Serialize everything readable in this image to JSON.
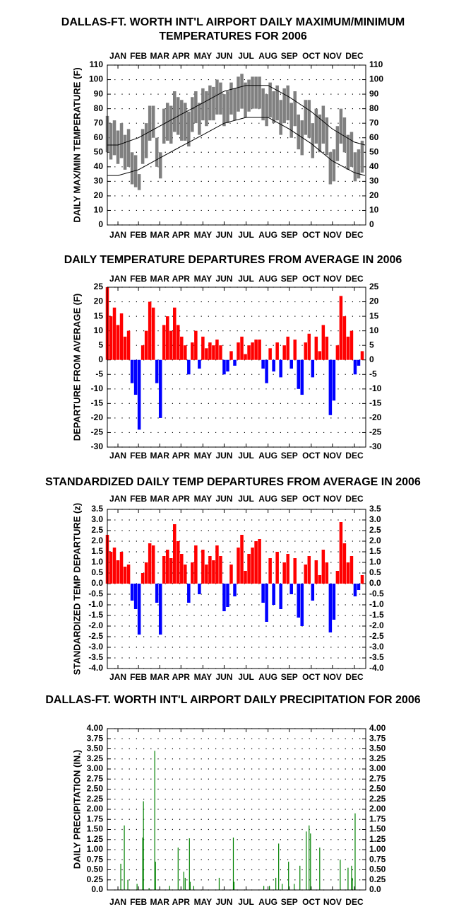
{
  "chart_data": [
    {
      "type": "range",
      "title": [
        "DALLAS-FT. WORTH INT'L AIRPORT DAILY MAXIMUM/MINIMUM",
        "TEMPERATURES FOR 2006"
      ],
      "ylabel": "DAILY MAX/MIN TEMPERATURE (F)",
      "xlim": [
        1,
        366
      ],
      "xticks": [
        {
          "value": 16,
          "label": "JAN"
        },
        {
          "value": 45,
          "label": "FEB"
        },
        {
          "value": 75,
          "label": "MAR"
        },
        {
          "value": 105,
          "label": "APR"
        },
        {
          "value": 136,
          "label": "MAY"
        },
        {
          "value": 166,
          "label": "JUN"
        },
        {
          "value": 197,
          "label": "JUL"
        },
        {
          "value": 228,
          "label": "AUG"
        },
        {
          "value": 258,
          "label": "SEP"
        },
        {
          "value": 289,
          "label": "OCT"
        },
        {
          "value": 319,
          "label": "NOV"
        },
        {
          "value": 350,
          "label": "DEC"
        }
      ],
      "xtick_sides": [
        "top",
        "bottom"
      ],
      "ylim": [
        0,
        110
      ],
      "yticks": [
        0,
        10,
        20,
        30,
        40,
        50,
        60,
        70,
        80,
        90,
        100,
        110
      ],
      "grid": "dotted",
      "x": [
        1,
        6,
        11,
        16,
        21,
        26,
        31,
        36,
        41,
        46,
        51,
        56,
        61,
        66,
        71,
        76,
        81,
        86,
        91,
        96,
        101,
        106,
        111,
        116,
        121,
        126,
        131,
        136,
        141,
        146,
        151,
        156,
        161,
        166,
        171,
        176,
        181,
        186,
        191,
        196,
        201,
        206,
        211,
        216,
        221,
        226,
        231,
        236,
        241,
        246,
        251,
        256,
        261,
        266,
        271,
        276,
        281,
        286,
        291,
        296,
        301,
        306,
        311,
        316,
        321,
        326,
        331,
        336,
        341,
        346,
        351,
        356,
        361
      ],
      "high": [
        75,
        70,
        72,
        65,
        70,
        62,
        66,
        50,
        48,
        35,
        66,
        70,
        82,
        82,
        60,
        50,
        80,
        84,
        82,
        92,
        88,
        86,
        84,
        78,
        88,
        92,
        84,
        94,
        92,
        96,
        95,
        100,
        98,
        90,
        92,
        98,
        94,
        102,
        104,
        98,
        100,
        102,
        102,
        102,
        94,
        90,
        98,
        92,
        96,
        86,
        94,
        96,
        84,
        92,
        76,
        72,
        86,
        86,
        70,
        80,
        76,
        82,
        74,
        50,
        52,
        68,
        80,
        74,
        62,
        64,
        50,
        52,
        58
      ],
      "low": [
        50,
        45,
        48,
        42,
        46,
        38,
        40,
        28,
        26,
        24,
        42,
        46,
        58,
        60,
        40,
        32,
        56,
        58,
        56,
        64,
        62,
        58,
        58,
        54,
        64,
        70,
        62,
        72,
        68,
        72,
        72,
        76,
        76,
        68,
        70,
        76,
        72,
        78,
        80,
        74,
        78,
        80,
        80,
        80,
        72,
        68,
        74,
        70,
        72,
        62,
        70,
        72,
        60,
        68,
        52,
        48,
        62,
        60,
        46,
        56,
        50,
        56,
        48,
        28,
        30,
        44,
        56,
        50,
        38,
        40,
        30,
        32,
        36
      ],
      "color": "#808080",
      "normals": {
        "x": [
          1,
          16,
          45,
          75,
          105,
          136,
          166,
          197,
          228,
          258,
          289,
          319,
          350,
          365
        ],
        "high": [
          55,
          55,
          60,
          68,
          76,
          84,
          92,
          96,
          96,
          88,
          78,
          66,
          57,
          55
        ],
        "low": [
          34,
          34,
          38,
          46,
          54,
          62,
          70,
          74,
          74,
          66,
          56,
          44,
          36,
          34
        ],
        "color": "#000000"
      }
    },
    {
      "type": "bar",
      "title": [
        "DAILY TEMPERATURE DEPARTURES FROM AVERAGE IN 2006"
      ],
      "ylabel": "DEPARTURE FROM AVERAGE (F)",
      "xlim": [
        1,
        366
      ],
      "xticks": [
        {
          "value": 16,
          "label": "JAN"
        },
        {
          "value": 45,
          "label": "FEB"
        },
        {
          "value": 75,
          "label": "MAR"
        },
        {
          "value": 105,
          "label": "APR"
        },
        {
          "value": 136,
          "label": "MAY"
        },
        {
          "value": 166,
          "label": "JUN"
        },
        {
          "value": 197,
          "label": "JUL"
        },
        {
          "value": 228,
          "label": "AUG"
        },
        {
          "value": 258,
          "label": "SEP"
        },
        {
          "value": 289,
          "label": "OCT"
        },
        {
          "value": 319,
          "label": "NOV"
        },
        {
          "value": 350,
          "label": "DEC"
        }
      ],
      "xtick_sides": [
        "top",
        "bottom"
      ],
      "ylim": [
        -30,
        25
      ],
      "yticks": [
        -30,
        -25,
        -20,
        -15,
        -10,
        -5,
        0,
        5,
        10,
        15,
        20,
        25
      ],
      "grid": "dotted",
      "bar_days": 5,
      "x": [
        1,
        6,
        11,
        16,
        21,
        26,
        31,
        36,
        41,
        46,
        51,
        56,
        61,
        66,
        71,
        76,
        81,
        86,
        91,
        96,
        101,
        106,
        111,
        116,
        121,
        126,
        131,
        136,
        141,
        146,
        151,
        156,
        161,
        166,
        171,
        176,
        181,
        186,
        191,
        196,
        201,
        206,
        211,
        216,
        221,
        226,
        231,
        236,
        241,
        246,
        251,
        256,
        261,
        266,
        271,
        276,
        281,
        286,
        291,
        296,
        301,
        306,
        311,
        316,
        321,
        326,
        331,
        336,
        341,
        346,
        351,
        356,
        361
      ],
      "values": [
        25,
        15,
        18,
        12,
        16,
        8,
        10,
        -8,
        -12,
        -24,
        5,
        10,
        20,
        18,
        -8,
        -20,
        12,
        15,
        10,
        18,
        12,
        8,
        5,
        -5,
        6,
        10,
        -3,
        8,
        4,
        6,
        5,
        7,
        5,
        -5,
        -4,
        3,
        -2,
        6,
        8,
        2,
        5,
        6,
        7,
        7,
        -3,
        -8,
        4,
        -4,
        6,
        -6,
        5,
        8,
        -3,
        7,
        -10,
        -12,
        6,
        9,
        -6,
        8,
        3,
        12,
        8,
        -19,
        -14,
        5,
        22,
        15,
        8,
        10,
        -5,
        -2,
        3
      ],
      "colors": {
        "positive": "#ff0000",
        "negative": "#0000ff"
      }
    },
    {
      "type": "bar",
      "title": [
        "STANDARDIZED DAILY TEMP DEPARTURES FROM AVERAGE IN 2006"
      ],
      "ylabel": "STANDARDIZED TEMP DEPARTURE (z)",
      "xlim": [
        1,
        366
      ],
      "xticks": [
        {
          "value": 16,
          "label": "JAN"
        },
        {
          "value": 45,
          "label": "FEB"
        },
        {
          "value": 75,
          "label": "MAR"
        },
        {
          "value": 105,
          "label": "APR"
        },
        {
          "value": 136,
          "label": "MAY"
        },
        {
          "value": 166,
          "label": "JUN"
        },
        {
          "value": 197,
          "label": "JUL"
        },
        {
          "value": 228,
          "label": "AUG"
        },
        {
          "value": 258,
          "label": "SEP"
        },
        {
          "value": 289,
          "label": "OCT"
        },
        {
          "value": 319,
          "label": "NOV"
        },
        {
          "value": 350,
          "label": "DEC"
        }
      ],
      "xtick_sides": [
        "top",
        "bottom"
      ],
      "ylim": [
        -4,
        3.5
      ],
      "yticks": [
        {
          "value": -4,
          "label": "-4.0"
        },
        -3.5,
        {
          "value": -3,
          "label": "-3.0"
        },
        -2.5,
        {
          "value": -2,
          "label": "-2.0"
        },
        -1.5,
        {
          "value": -1,
          "label": "-1.0"
        },
        -0.5,
        {
          "value": 0,
          "label": "0.0"
        },
        0.5,
        {
          "value": 1,
          "label": "1.0"
        },
        1.5,
        {
          "value": 2,
          "label": "2.0"
        },
        2.5,
        {
          "value": 3,
          "label": "3.0"
        },
        3.5
      ],
      "grid": "dotted",
      "bar_days": 5,
      "x": [
        1,
        6,
        11,
        16,
        21,
        26,
        31,
        36,
        41,
        46,
        51,
        56,
        61,
        66,
        71,
        76,
        81,
        86,
        91,
        96,
        101,
        106,
        111,
        116,
        121,
        126,
        131,
        136,
        141,
        146,
        151,
        156,
        161,
        166,
        171,
        176,
        181,
        186,
        191,
        196,
        201,
        206,
        211,
        216,
        221,
        226,
        231,
        236,
        241,
        246,
        251,
        256,
        261,
        266,
        271,
        276,
        281,
        286,
        291,
        296,
        301,
        306,
        311,
        316,
        321,
        326,
        331,
        336,
        341,
        346,
        351,
        356,
        361
      ],
      "values": [
        2.3,
        1.5,
        1.7,
        1.1,
        1.5,
        0.8,
        0.9,
        -0.8,
        -1.2,
        -2.4,
        0.5,
        1.0,
        1.9,
        1.8,
        -0.9,
        -2.4,
        1.3,
        1.6,
        1.2,
        2.8,
        2.0,
        1.4,
        0.9,
        -0.9,
        1.0,
        1.8,
        -0.5,
        1.6,
        0.9,
        1.3,
        1.1,
        1.8,
        1.3,
        -1.3,
        -1.1,
        0.9,
        -0.6,
        1.7,
        2.3,
        0.6,
        1.4,
        1.7,
        2.0,
        2.1,
        -0.9,
        -1.8,
        1.2,
        -1.0,
        1.5,
        -1.2,
        1.0,
        1.4,
        -0.5,
        1.2,
        -1.6,
        -2.0,
        0.9,
        1.3,
        -0.8,
        1.1,
        0.4,
        1.6,
        1.0,
        -2.3,
        -1.7,
        0.6,
        2.9,
        1.9,
        1.0,
        1.3,
        -0.6,
        -0.3,
        0.4
      ],
      "colors": {
        "positive": "#ff0000",
        "negative": "#0000ff"
      }
    },
    {
      "type": "bar",
      "title": [
        "DALLAS-FT. WORTH INT'L AIRPORT DAILY PRECIPITATION FOR 2006"
      ],
      "ylabel": "DAILY PRECIPITATION (IN.)",
      "xlim": [
        1,
        366
      ],
      "xticks": [
        {
          "value": 16,
          "label": "JAN"
        },
        {
          "value": 45,
          "label": "FEB"
        },
        {
          "value": 75,
          "label": "MAR"
        },
        {
          "value": 105,
          "label": "APR"
        },
        {
          "value": 136,
          "label": "MAY"
        },
        {
          "value": 166,
          "label": "JUN"
        },
        {
          "value": 197,
          "label": "JUL"
        },
        {
          "value": 228,
          "label": "AUG"
        },
        {
          "value": 258,
          "label": "SEP"
        },
        {
          "value": 289,
          "label": "OCT"
        },
        {
          "value": 319,
          "label": "NOV"
        },
        {
          "value": 350,
          "label": "DEC"
        }
      ],
      "xtick_sides": [
        "bottom"
      ],
      "ylim": [
        0,
        4
      ],
      "yticks": [
        {
          "value": 0,
          "label": "0.0"
        },
        0.25,
        {
          "value": 0.5,
          "label": "0.50"
        },
        0.75,
        {
          "value": 1,
          "label": "1.00"
        },
        1.25,
        {
          "value": 1.5,
          "label": "1.50"
        },
        1.75,
        {
          "value": 2,
          "label": "2.00"
        },
        2.25,
        {
          "value": 2.5,
          "label": "2.50"
        },
        2.75,
        {
          "value": 3,
          "label": "3.00"
        },
        3.25,
        {
          "value": 3.5,
          "label": "3.50"
        },
        3.75,
        {
          "value": 4,
          "label": "4.00"
        }
      ],
      "grid": "dotted",
      "bar_days": 1,
      "x": [
        20,
        25,
        30,
        43,
        51,
        52,
        60,
        68,
        69,
        89,
        101,
        109,
        111,
        117,
        118,
        123,
        159,
        179,
        180,
        222,
        230,
        239,
        243,
        248,
        257,
        265,
        273,
        282,
        286,
        288,
        301,
        330,
        341,
        346,
        347,
        351
      ],
      "values": [
        0.65,
        1.6,
        0.25,
        0.15,
        1.3,
        2.2,
        0.05,
        3.45,
        0.7,
        0.1,
        1.05,
        0.45,
        0.3,
        1.28,
        0.2,
        0.1,
        0.3,
        1.3,
        0.2,
        0.1,
        0.1,
        0.3,
        1.15,
        0.15,
        0.7,
        0.15,
        0.6,
        1.45,
        1.6,
        1.4,
        1.05,
        0.75,
        0.55,
        0.6,
        0.3,
        1.9
      ],
      "colors": {
        "positive": "#008000",
        "negative": "#008000"
      }
    }
  ]
}
